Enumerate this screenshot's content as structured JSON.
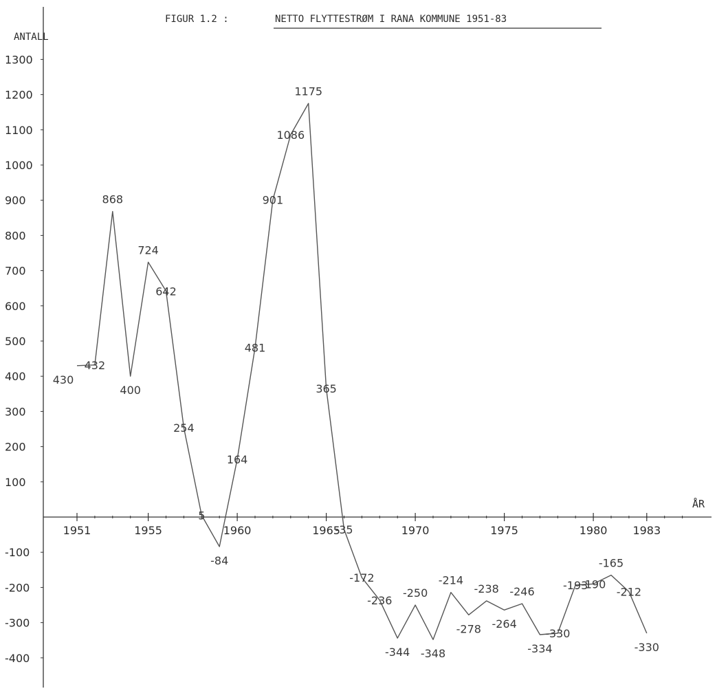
{
  "chart_data": {
    "type": "line",
    "title": "FIGUR 1.2 :",
    "subtitle": "NETTO FLYTTESTRØM I RANA KOMMUNE 1951-83",
    "ylabel": "ANTALL",
    "xlabel": "ÅR",
    "x_ticks": [
      "1951",
      "1955",
      "1960",
      "1965",
      "1970",
      "1975",
      "1980",
      "1983"
    ],
    "y_ticks": [
      "1300",
      "1200",
      "1100",
      "1000",
      "900",
      "800",
      "700",
      "600",
      "500",
      "400",
      "300",
      "200",
      "100",
      "-100",
      "-200",
      "-300",
      "-400"
    ],
    "xlim": [
      1949,
      1993
    ],
    "ylim": [
      -450,
      1350
    ],
    "grid": false,
    "series": [
      {
        "x": [
          1951,
          1952,
          1953,
          1954,
          1955,
          1956,
          1957,
          1958,
          1959,
          1960,
          1961,
          1962,
          1963,
          1964,
          1965,
          1966,
          1967,
          1968,
          1969,
          1970,
          1971,
          1972,
          1973,
          1974,
          1975,
          1976,
          1977,
          1978,
          1979,
          1980,
          1981,
          1982,
          1983
        ],
        "values": [
          430,
          432,
          868,
          400,
          724,
          642,
          254,
          5,
          -84,
          164,
          481,
          901,
          1086,
          1175,
          365,
          -35,
          -172,
          -236,
          -344,
          -250,
          -348,
          -214,
          -278,
          -238,
          -264,
          -246,
          -334,
          -330,
          -193,
          -190,
          -165,
          -212,
          -330
        ],
        "labels": [
          "430",
          "432",
          "868",
          "400",
          "724",
          "642",
          "254",
          "5",
          "-84",
          "164",
          "481",
          "901",
          "1086",
          "1175",
          "365",
          "-35",
          "-172",
          "-236",
          "-344",
          "-250",
          "-348",
          "-214",
          "-278",
          "-238",
          "-264",
          "-246",
          "-334",
          "-330",
          "-193",
          "-190",
          "-165",
          "-212",
          "-330"
        ]
      }
    ]
  }
}
